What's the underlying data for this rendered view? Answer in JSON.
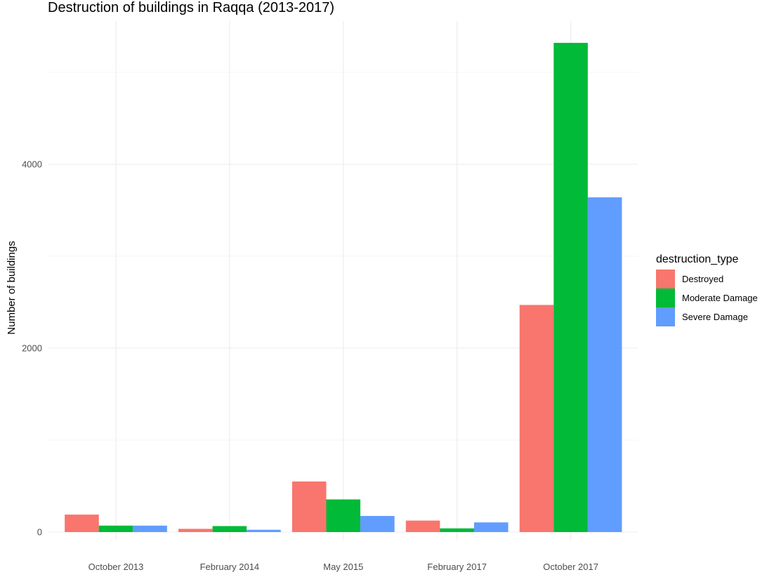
{
  "chart_data": {
    "type": "bar",
    "title": "Destruction of buildings in Raqqa (2013-2017)",
    "xlabel": "",
    "ylabel": "Number of buildings",
    "categories": [
      "October 2013",
      "February 2014",
      "May 2015",
      "February 2017",
      "October 2017"
    ],
    "series": [
      {
        "name": "Destroyed",
        "color": "#F8766D",
        "values": [
          190,
          35,
          550,
          125,
          2470
        ]
      },
      {
        "name": "Moderate Damage",
        "color": "#00BA38",
        "values": [
          70,
          65,
          355,
          40,
          5320
        ]
      },
      {
        "name": "Severe Damage",
        "color": "#619CFF",
        "values": [
          70,
          25,
          175,
          105,
          3640
        ]
      }
    ],
    "ylim": [
      0,
      5550
    ],
    "yticks": [
      0,
      2000,
      4000
    ],
    "grid": true,
    "legend": {
      "title": "destruction_type",
      "position": "right"
    }
  }
}
